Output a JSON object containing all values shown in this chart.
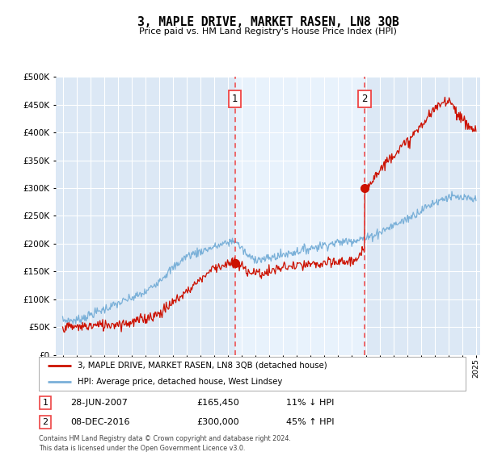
{
  "title": "3, MAPLE DRIVE, MARKET RASEN, LN8 3QB",
  "subtitle": "Price paid vs. HM Land Registry's House Price Index (HPI)",
  "bg_color": "#dce8f5",
  "bg_color_outer": "#dce8f5",
  "shaded_color": "#e8f2fc",
  "legend_entry1": "3, MAPLE DRIVE, MARKET RASEN, LN8 3QB (detached house)",
  "legend_entry2": "HPI: Average price, detached house, West Lindsey",
  "sale1_date": "28-JUN-2007",
  "sale1_price": "£165,450",
  "sale1_hpi": "11% ↓ HPI",
  "sale1_year": 2007.5,
  "sale1_price_val": 165450,
  "sale2_date": "08-DEC-2016",
  "sale2_price": "£300,000",
  "sale2_hpi": "45% ↑ HPI",
  "sale2_year": 2016.92,
  "sale2_price_val": 300000,
  "footer": "Contains HM Land Registry data © Crown copyright and database right 2024.\nThis data is licensed under the Open Government Licence v3.0.",
  "hpi_color": "#7ab0d8",
  "price_color": "#cc1100",
  "dashed_color": "#ee4444",
  "ylim_max": 500000,
  "ylim_min": 0,
  "xmin": 1995,
  "xmax": 2025
}
